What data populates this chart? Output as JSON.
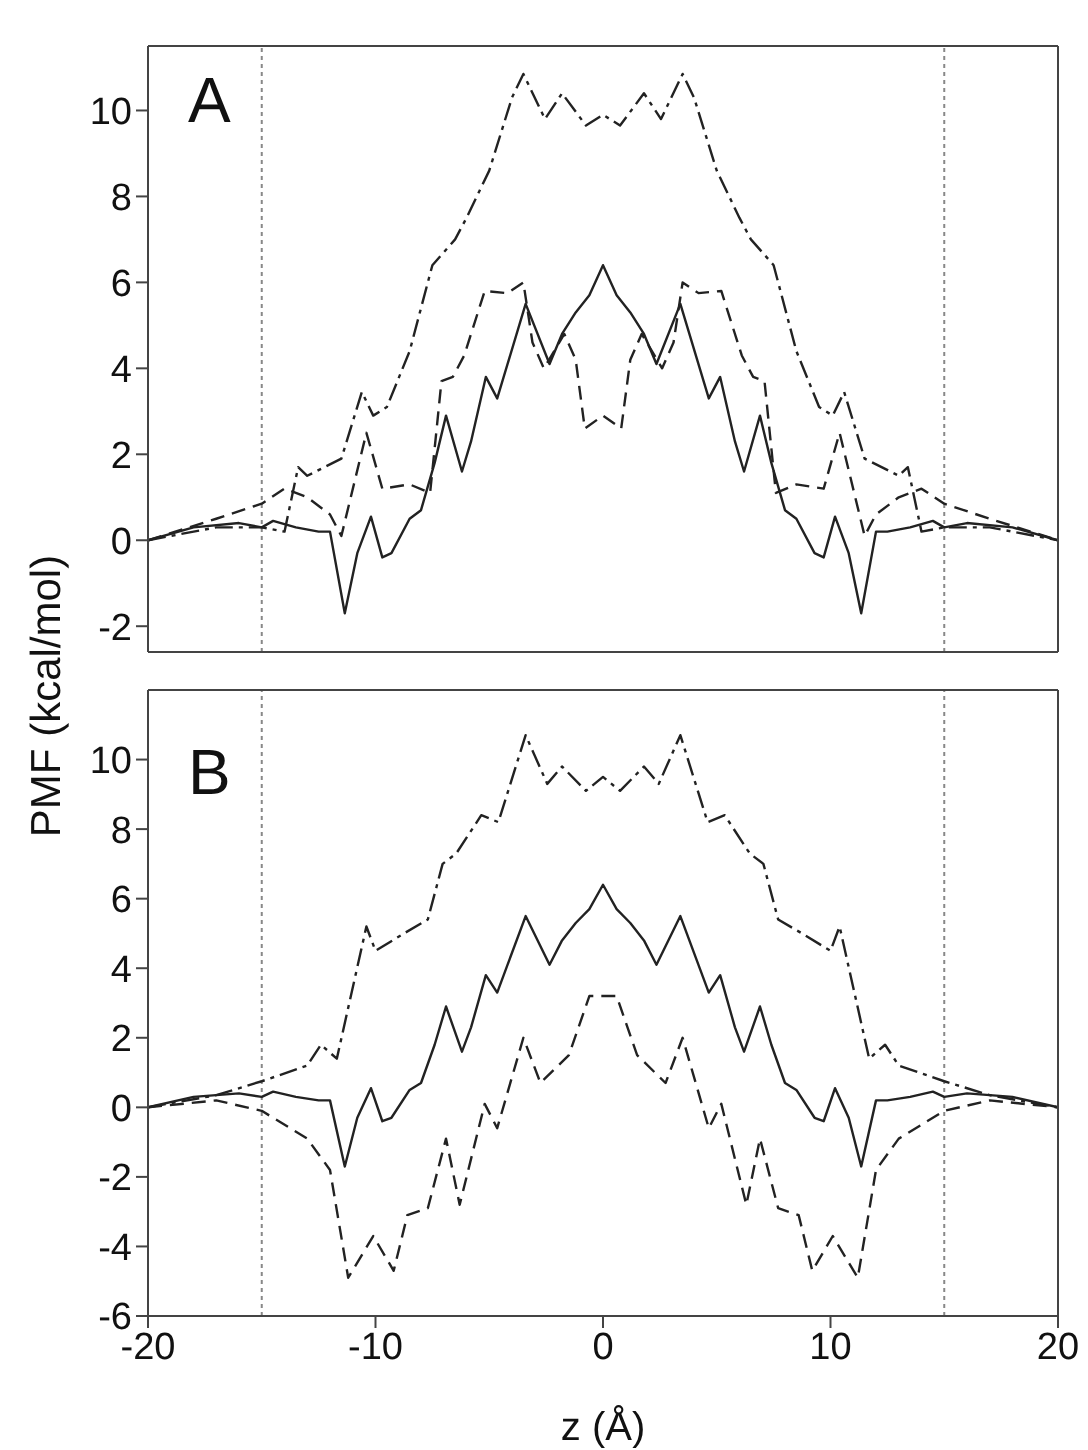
{
  "chart_data": [
    {
      "type": "line",
      "title": "A",
      "ylabel": "PMF (kcal/mol)",
      "xlim": [
        -20,
        20
      ],
      "xticks": [
        -20,
        -10,
        0,
        10,
        20
      ],
      "ylim": [
        -2.6,
        11.5
      ],
      "yticks": [
        -2,
        0,
        2,
        4,
        6,
        8,
        10
      ],
      "tick_labels": "y",
      "marker": "none",
      "ref_lines": [
        {
          "axis": "x",
          "value": -15,
          "color": "#888888",
          "line_style": "dotted"
        },
        {
          "axis": "x",
          "value": 15,
          "color": "#888888",
          "line_style": "dotted"
        }
      ],
      "series": [
        {
          "color": "#222222",
          "line_style": "solid",
          "x": [
            -20,
            -18,
            -16,
            -15,
            -14.5,
            -13.5,
            -12.5,
            -12,
            -11.35,
            -10.8,
            -10.2,
            -9.7,
            -9.3,
            -8.5,
            -8,
            -7.4,
            -6.9,
            -6.2,
            -5.8,
            -5.15,
            -4.65,
            -3.4,
            -2.35,
            -1.8,
            -1.2,
            -0.6,
            0,
            0.6,
            1.2,
            1.8,
            2.35,
            3.4,
            4.65,
            5.15,
            5.8,
            6.2,
            6.9,
            7.4,
            8,
            8.5,
            9.3,
            9.7,
            10.2,
            10.8,
            11.35,
            12,
            12.5,
            13.5,
            14.5,
            15,
            16,
            18,
            20
          ],
          "values": [
            0,
            0.3,
            0.4,
            0.3,
            0.45,
            0.3,
            0.2,
            0.2,
            -1.7,
            -0.3,
            0.55,
            -0.4,
            -0.3,
            0.5,
            0.7,
            1.8,
            2.9,
            1.6,
            2.3,
            3.8,
            3.3,
            5.5,
            4.1,
            4.8,
            5.3,
            5.7,
            6.4,
            5.7,
            5.3,
            4.8,
            4.1,
            5.5,
            3.3,
            3.8,
            2.3,
            1.6,
            2.9,
            1.8,
            0.7,
            0.5,
            -0.3,
            -0.4,
            0.55,
            -0.3,
            -1.7,
            0.2,
            0.2,
            0.3,
            0.45,
            0.3,
            0.4,
            0.3,
            0
          ]
        },
        {
          "color": "#222222",
          "line_style": "dashed",
          "x": [
            -20,
            -17,
            -15,
            -14,
            -13,
            -12,
            -11.5,
            -10.4,
            -9.7,
            -8.5,
            -7.6,
            -7.1,
            -6.6,
            -6.1,
            -5.2,
            -4.2,
            -3.5,
            -3.1,
            -2.6,
            -1.7,
            -1.2,
            -0.8,
            0,
            0.8,
            1.2,
            1.7,
            2.6,
            3.1,
            3.5,
            4.2,
            5.2,
            6.1,
            6.6,
            7.1,
            7.6,
            8.5,
            9.7,
            10.4,
            11.5,
            12,
            13,
            14,
            15,
            17,
            20
          ],
          "values": [
            0,
            0.5,
            0.85,
            1.2,
            1.0,
            0.6,
            0.1,
            2.5,
            1.2,
            1.3,
            1.1,
            3.7,
            3.8,
            4.3,
            5.8,
            5.75,
            6.0,
            4.6,
            4.0,
            4.8,
            4.2,
            2.6,
            2.9,
            2.6,
            4.2,
            4.8,
            4.0,
            4.6,
            6.0,
            5.75,
            5.8,
            4.3,
            3.8,
            3.7,
            1.1,
            1.3,
            1.2,
            2.5,
            0.1,
            0.6,
            1.0,
            1.2,
            0.85,
            0.5,
            0
          ]
        },
        {
          "color": "#222222",
          "line_style": "dashdot",
          "x": [
            -20,
            -17,
            -15,
            -14,
            -13.4,
            -13,
            -11.5,
            -10.6,
            -10.1,
            -9.5,
            -8.5,
            -7.5,
            -6.5,
            -6,
            -5,
            -4,
            -3.5,
            -2.55,
            -1.8,
            -0.75,
            0,
            0.75,
            1.8,
            2.55,
            3.5,
            4,
            5,
            6,
            6.5,
            7.5,
            8.5,
            9.5,
            10.1,
            10.6,
            11.5,
            13,
            13.4,
            14,
            15,
            17,
            20
          ],
          "values": [
            0,
            0.3,
            0.3,
            0.2,
            1.7,
            1.5,
            1.9,
            3.45,
            2.9,
            3.1,
            4.4,
            6.4,
            7.0,
            7.5,
            8.6,
            10.3,
            10.85,
            9.8,
            10.4,
            9.65,
            9.9,
            9.65,
            10.4,
            9.8,
            10.85,
            10.3,
            8.6,
            7.5,
            7.0,
            6.4,
            4.4,
            3.1,
            2.9,
            3.45,
            1.9,
            1.5,
            1.7,
            0.2,
            0.3,
            0.3,
            0
          ]
        }
      ]
    },
    {
      "type": "line",
      "title": "B",
      "xlabel": "z (Å)",
      "xlim": [
        -20,
        20
      ],
      "xticks": [
        -20,
        -10,
        0,
        10,
        20
      ],
      "ylim": [
        -6,
        12
      ],
      "yticks": [
        -6,
        -4,
        -2,
        0,
        2,
        4,
        6,
        8,
        10
      ],
      "marker": "none",
      "ref_lines": [
        {
          "axis": "x",
          "value": -15,
          "color": "#888888",
          "line_style": "dotted"
        },
        {
          "axis": "x",
          "value": 15,
          "color": "#888888",
          "line_style": "dotted"
        }
      ],
      "series": [
        {
          "color": "#222222",
          "line_style": "dashdot",
          "x": [
            -20,
            -17,
            -15,
            -13,
            -12.4,
            -11.7,
            -10.4,
            -10,
            -8.75,
            -7.7,
            -7.05,
            -6.45,
            -5.35,
            -4.6,
            -3.4,
            -2.45,
            -1.8,
            -0.75,
            0,
            0.75,
            1.8,
            2.45,
            3.4,
            4.6,
            5.35,
            6.45,
            7.05,
            7.7,
            8.75,
            10,
            10.4,
            11.7,
            12.4,
            13,
            15,
            17,
            20
          ],
          "values": [
            0,
            0.35,
            0.75,
            1.2,
            1.8,
            1.4,
            5.2,
            4.5,
            5.0,
            5.4,
            7.0,
            7.3,
            8.4,
            8.2,
            10.7,
            9.3,
            9.8,
            9.1,
            9.5,
            9.1,
            9.8,
            9.3,
            10.7,
            8.2,
            8.4,
            7.3,
            7.0,
            5.4,
            5.0,
            4.5,
            5.2,
            1.4,
            1.8,
            1.2,
            0.75,
            0.35,
            0
          ]
        },
        {
          "color": "#222222",
          "line_style": "solid",
          "x": [
            -20,
            -18,
            -16,
            -15,
            -14.5,
            -13.5,
            -12.5,
            -12,
            -11.35,
            -10.8,
            -10.2,
            -9.7,
            -9.3,
            -8.5,
            -8,
            -7.4,
            -6.9,
            -6.2,
            -5.8,
            -5.15,
            -4.65,
            -3.4,
            -2.35,
            -1.8,
            -1.2,
            -0.6,
            0,
            0.6,
            1.2,
            1.8,
            2.35,
            3.4,
            4.65,
            5.15,
            5.8,
            6.2,
            6.9,
            7.4,
            8,
            8.5,
            9.3,
            9.7,
            10.2,
            10.8,
            11.35,
            12,
            12.5,
            13.5,
            14.5,
            15,
            16,
            18,
            20
          ],
          "values": [
            0,
            0.3,
            0.4,
            0.3,
            0.45,
            0.3,
            0.2,
            0.2,
            -1.7,
            -0.3,
            0.55,
            -0.4,
            -0.3,
            0.5,
            0.7,
            1.8,
            2.9,
            1.6,
            2.3,
            3.8,
            3.3,
            5.5,
            4.1,
            4.8,
            5.3,
            5.7,
            6.4,
            5.7,
            5.3,
            4.8,
            4.1,
            5.5,
            3.3,
            3.8,
            2.3,
            1.6,
            2.9,
            1.8,
            0.7,
            0.5,
            -0.3,
            -0.4,
            0.55,
            -0.3,
            -1.7,
            0.2,
            0.2,
            0.3,
            0.45,
            0.3,
            0.4,
            0.3,
            0
          ]
        },
        {
          "color": "#222222",
          "line_style": "dashed",
          "x": [
            -20,
            -17,
            -15,
            -13,
            -12,
            -11.2,
            -10.1,
            -9.2,
            -8.6,
            -7.7,
            -6.9,
            -6.3,
            -5.2,
            -4.65,
            -3.5,
            -2.75,
            -1.5,
            -0.6,
            0,
            0.6,
            1.5,
            2.75,
            3.5,
            4.65,
            5.2,
            6.3,
            6.9,
            7.7,
            8.6,
            9.2,
            10.1,
            11.2,
            12,
            13,
            15,
            17,
            20
          ],
          "values": [
            0,
            0.2,
            -0.1,
            -0.9,
            -1.8,
            -4.9,
            -3.7,
            -4.7,
            -3.1,
            -2.9,
            -0.9,
            -2.8,
            0.1,
            -0.6,
            2.0,
            0.7,
            1.5,
            3.2,
            3.2,
            3.2,
            1.5,
            0.7,
            2.0,
            -0.6,
            0.1,
            -2.8,
            -0.9,
            -2.9,
            -3.1,
            -4.7,
            -3.7,
            -4.9,
            -1.8,
            -0.9,
            -0.1,
            0.2,
            0
          ]
        }
      ]
    }
  ]
}
